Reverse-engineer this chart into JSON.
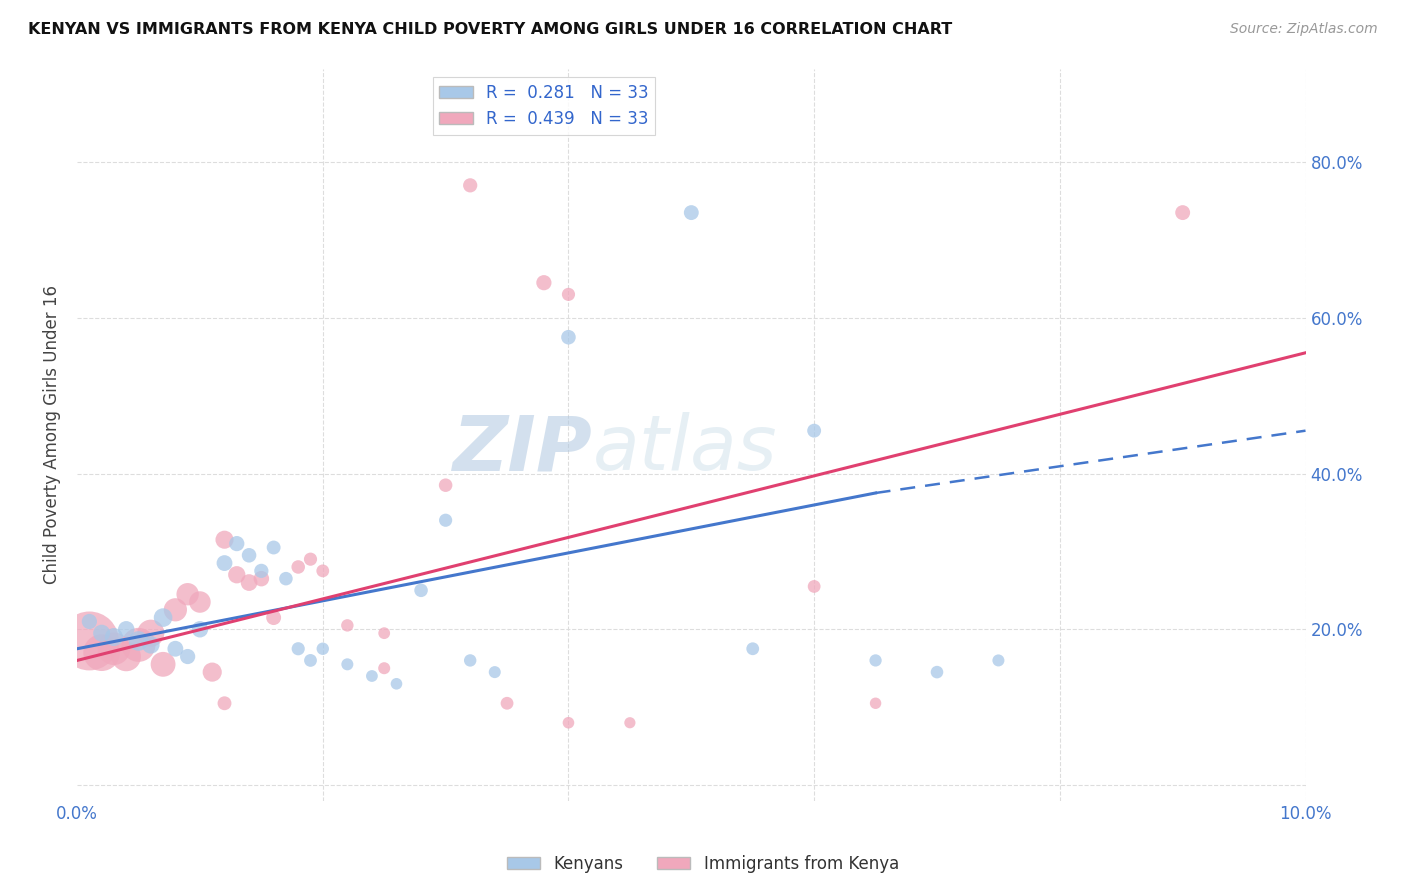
{
  "title": "KENYAN VS IMMIGRANTS FROM KENYA CHILD POVERTY AMONG GIRLS UNDER 16 CORRELATION CHART",
  "source": "Source: ZipAtlas.com",
  "ylabel": "Child Poverty Among Girls Under 16",
  "xlim": [
    0.0,
    0.1
  ],
  "ylim": [
    -0.02,
    0.92
  ],
  "xticks": [
    0.0,
    0.02,
    0.04,
    0.06,
    0.08,
    0.1
  ],
  "xticklabels": [
    "0.0%",
    "",
    "",
    "",
    "",
    "10.0%"
  ],
  "yticks": [
    0.0,
    0.2,
    0.4,
    0.6,
    0.8
  ],
  "yticklabels": [
    "",
    "20.0%",
    "40.0%",
    "60.0%",
    "80.0%"
  ],
  "kenyan_color": "#a8c8e8",
  "immigrant_color": "#f0a8bc",
  "kenyan_line_color": "#4477cc",
  "immigrant_line_color": "#e04070",
  "R_kenyan": 0.281,
  "N_kenyan": 33,
  "R_immigrant": 0.439,
  "N_immigrant": 33,
  "kenyan_scatter": [
    [
      0.001,
      0.21
    ],
    [
      0.002,
      0.195
    ],
    [
      0.003,
      0.19
    ],
    [
      0.004,
      0.2
    ],
    [
      0.005,
      0.185
    ],
    [
      0.006,
      0.18
    ],
    [
      0.007,
      0.215
    ],
    [
      0.008,
      0.175
    ],
    [
      0.009,
      0.165
    ],
    [
      0.01,
      0.2
    ],
    [
      0.012,
      0.285
    ],
    [
      0.013,
      0.31
    ],
    [
      0.014,
      0.295
    ],
    [
      0.015,
      0.275
    ],
    [
      0.016,
      0.305
    ],
    [
      0.017,
      0.265
    ],
    [
      0.018,
      0.175
    ],
    [
      0.019,
      0.16
    ],
    [
      0.02,
      0.175
    ],
    [
      0.022,
      0.155
    ],
    [
      0.024,
      0.14
    ],
    [
      0.026,
      0.13
    ],
    [
      0.028,
      0.25
    ],
    [
      0.03,
      0.34
    ],
    [
      0.032,
      0.16
    ],
    [
      0.034,
      0.145
    ],
    [
      0.04,
      0.575
    ],
    [
      0.05,
      0.735
    ],
    [
      0.055,
      0.175
    ],
    [
      0.06,
      0.455
    ],
    [
      0.065,
      0.16
    ],
    [
      0.07,
      0.145
    ],
    [
      0.075,
      0.16
    ]
  ],
  "kenyan_scatter_sizes": [
    120,
    150,
    170,
    140,
    200,
    160,
    180,
    130,
    120,
    140,
    130,
    120,
    110,
    105,
    100,
    95,
    90,
    85,
    80,
    75,
    72,
    70,
    95,
    90,
    80,
    75,
    110,
    115,
    85,
    100,
    78,
    82,
    75
  ],
  "immigrant_scatter": [
    [
      0.001,
      0.185
    ],
    [
      0.002,
      0.17
    ],
    [
      0.003,
      0.175
    ],
    [
      0.004,
      0.165
    ],
    [
      0.005,
      0.18
    ],
    [
      0.006,
      0.195
    ],
    [
      0.007,
      0.155
    ],
    [
      0.008,
      0.225
    ],
    [
      0.009,
      0.245
    ],
    [
      0.01,
      0.235
    ],
    [
      0.011,
      0.145
    ],
    [
      0.012,
      0.315
    ],
    [
      0.013,
      0.27
    ],
    [
      0.014,
      0.26
    ],
    [
      0.015,
      0.265
    ],
    [
      0.016,
      0.215
    ],
    [
      0.018,
      0.28
    ],
    [
      0.019,
      0.29
    ],
    [
      0.02,
      0.275
    ],
    [
      0.022,
      0.205
    ],
    [
      0.025,
      0.15
    ],
    [
      0.03,
      0.385
    ],
    [
      0.032,
      0.77
    ],
    [
      0.035,
      0.105
    ],
    [
      0.038,
      0.645
    ],
    [
      0.04,
      0.08
    ],
    [
      0.045,
      0.08
    ],
    [
      0.06,
      0.255
    ],
    [
      0.065,
      0.105
    ],
    [
      0.09,
      0.735
    ],
    [
      0.012,
      0.105
    ],
    [
      0.025,
      0.195
    ],
    [
      0.04,
      0.63
    ]
  ],
  "immigrant_scatter_sizes": [
    1800,
    700,
    550,
    450,
    600,
    380,
    320,
    280,
    260,
    240,
    190,
    170,
    155,
    145,
    125,
    115,
    95,
    90,
    85,
    80,
    75,
    95,
    105,
    85,
    120,
    70,
    65,
    85,
    68,
    115,
    100,
    72,
    90
  ],
  "kenyan_line_x": [
    0.0,
    0.065
  ],
  "kenyan_line_y": [
    0.175,
    0.375
  ],
  "kenyan_ext_line_x": [
    0.065,
    0.1
  ],
  "kenyan_ext_line_y": [
    0.375,
    0.455
  ],
  "immigrant_line_x": [
    0.0,
    0.1
  ],
  "immigrant_line_y": [
    0.16,
    0.555
  ],
  "watermark_zip": "ZIP",
  "watermark_atlas": "atlas",
  "background_color": "#ffffff",
  "grid_color": "#dddddd"
}
